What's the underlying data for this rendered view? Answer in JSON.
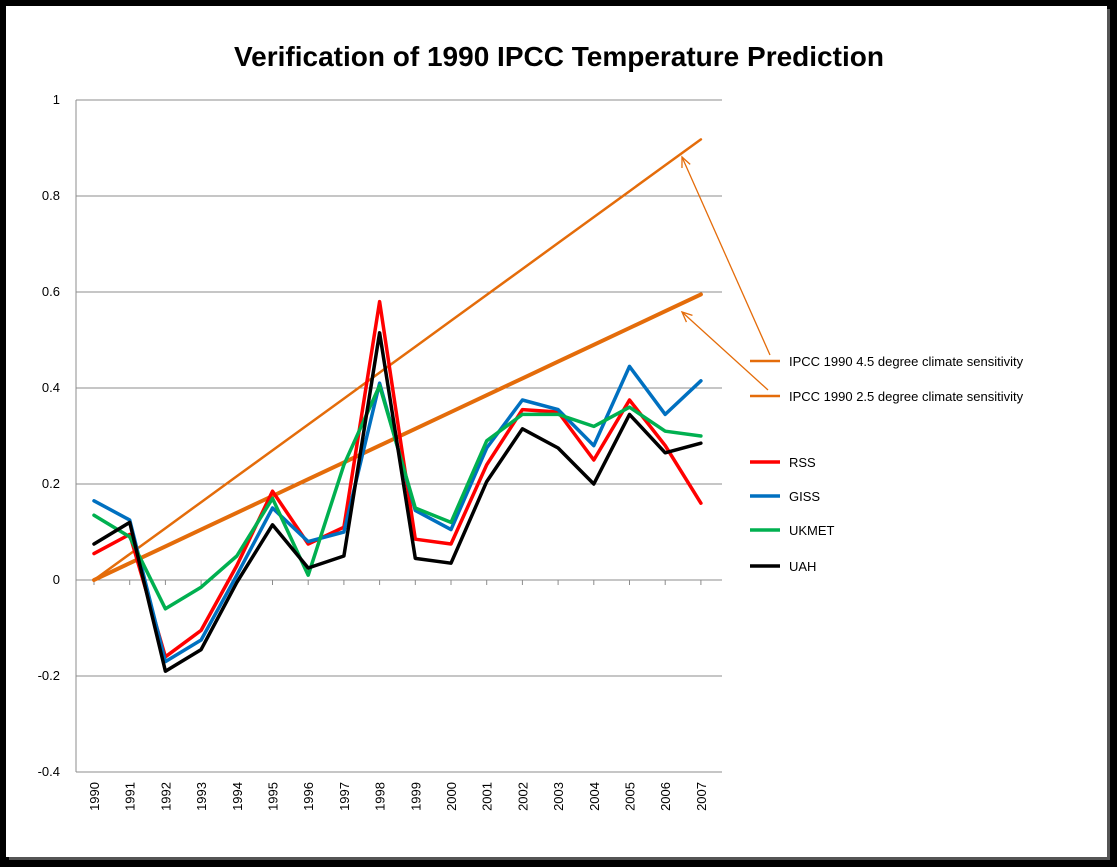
{
  "chart_data": {
    "type": "line",
    "title": "Verification of 1990 IPCC Temperature Prediction",
    "xlabel": "",
    "ylabel": "",
    "ylim": [
      -0.4,
      1
    ],
    "yticks": [
      "1",
      "0.8",
      "0.6",
      "0.4",
      "0.2",
      "0",
      "-0.2",
      "-0.4"
    ],
    "grid": true,
    "legend_position": "right",
    "x": [
      "1990",
      "1991",
      "1992",
      "1993",
      "1994",
      "1995",
      "1996",
      "1997",
      "1998",
      "1999",
      "2000",
      "2001",
      "2002",
      "2003",
      "2004",
      "2005",
      "2006",
      "2007"
    ],
    "series": [
      {
        "name": "IPCC 1990 4.5 degree climate sensitivity",
        "color": "#E46C0A",
        "values": [
          0.0,
          0.054,
          0.108,
          0.162,
          0.216,
          0.27,
          0.324,
          0.378,
          0.432,
          0.486,
          0.54,
          0.594,
          0.648,
          0.702,
          0.756,
          0.81,
          0.864,
          0.918
        ]
      },
      {
        "name": "IPCC 1990 2.5 degree climate sensitivity",
        "color": "#E46C0A",
        "values": [
          0.0,
          0.035,
          0.07,
          0.105,
          0.14,
          0.175,
          0.21,
          0.245,
          0.28,
          0.315,
          0.35,
          0.385,
          0.42,
          0.455,
          0.49,
          0.525,
          0.56,
          0.595
        ]
      },
      {
        "name": "RSS",
        "color": "#FF0000",
        "values": [
          0.055,
          0.095,
          -0.16,
          -0.105,
          0.03,
          0.185,
          0.075,
          0.11,
          0.58,
          0.085,
          0.075,
          0.24,
          0.355,
          0.35,
          0.25,
          0.375,
          0.28,
          0.16
        ]
      },
      {
        "name": "GISS",
        "color": "#0070C0",
        "values": [
          0.165,
          0.125,
          -0.17,
          -0.125,
          0.01,
          0.15,
          0.08,
          0.1,
          0.41,
          0.145,
          0.105,
          0.275,
          0.375,
          0.355,
          0.28,
          0.445,
          0.345,
          0.415
        ]
      },
      {
        "name": "UKMET",
        "color": "#00B050",
        "values": [
          0.135,
          0.09,
          -0.06,
          -0.015,
          0.05,
          0.17,
          0.01,
          0.24,
          0.405,
          0.15,
          0.12,
          0.29,
          0.345,
          0.345,
          0.32,
          0.36,
          0.31,
          0.3
        ]
      },
      {
        "name": "UAH",
        "color": "#000000",
        "values": [
          0.075,
          0.12,
          -0.19,
          -0.145,
          -0.005,
          0.115,
          0.025,
          0.05,
          0.515,
          0.045,
          0.035,
          0.205,
          0.315,
          0.275,
          0.2,
          0.345,
          0.265,
          0.285
        ]
      }
    ]
  }
}
